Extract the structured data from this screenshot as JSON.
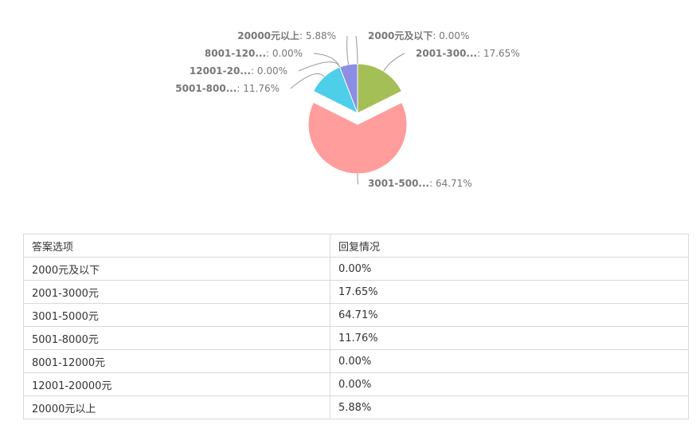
{
  "chart_data": {
    "type": "pie",
    "slices": [
      {
        "label": "2000元及以下",
        "short_label": "2000元及以下",
        "value": 0.0,
        "value_label": "0.00%",
        "color": "#4e7ec0"
      },
      {
        "label": "2001-3000元",
        "short_label": "2001-300...",
        "value": 17.65,
        "value_label": "17.65%",
        "color": "#a5bf57"
      },
      {
        "label": "3001-5000元",
        "short_label": "3001-500...",
        "value": 64.71,
        "value_label": "64.71%",
        "color": "#ff9c9c",
        "exploded": true
      },
      {
        "label": "5001-8000元",
        "short_label": "5001-800...",
        "value": 11.76,
        "value_label": "11.76%",
        "color": "#4dcfea"
      },
      {
        "label": "8001-12000元",
        "short_label": "8001-120...",
        "value": 0.0,
        "value_label": "0.00%",
        "color": "#f2a93b"
      },
      {
        "label": "12001-20000元",
        "short_label": "12001-20...",
        "value": 0.0,
        "value_label": "0.00%",
        "color": "#c56ed4"
      },
      {
        "label": "20000元以上",
        "short_label": "20000元以上",
        "value": 5.88,
        "value_label": "5.88%",
        "color": "#8c8ee3"
      }
    ],
    "legend": "none"
  },
  "table": {
    "headers": [
      "答案选项",
      "回复情况"
    ],
    "rows": [
      [
        "2000元及以下",
        "0.00%"
      ],
      [
        "2001-3000元",
        "17.65%"
      ],
      [
        "3001-5000元",
        "64.71%"
      ],
      [
        "5001-8000元",
        "11.76%"
      ],
      [
        "8001-12000元",
        "0.00%"
      ],
      [
        "12001-20000元",
        "0.00%"
      ],
      [
        "20000元以上",
        "5.88%"
      ]
    ]
  }
}
